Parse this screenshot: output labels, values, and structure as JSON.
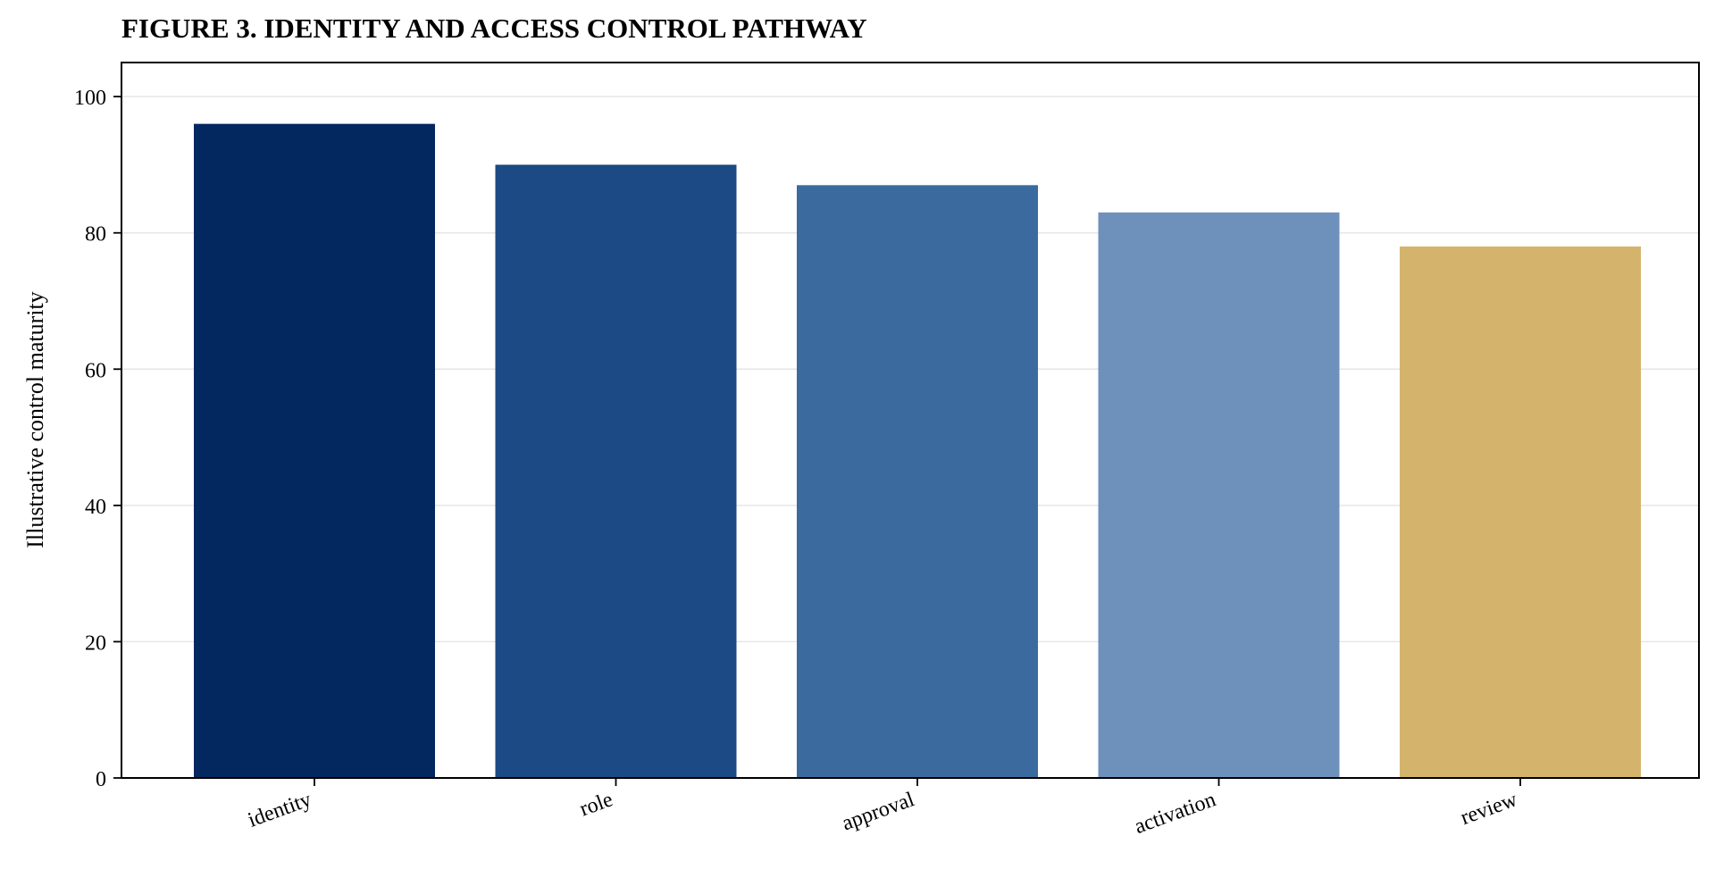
{
  "chart_data": {
    "type": "bar",
    "title": "FIGURE 3. IDENTITY AND ACCESS CONTROL PATHWAY",
    "xlabel": "",
    "ylabel": "Illustrative control maturity",
    "categories": [
      "identity",
      "role",
      "approval",
      "activation",
      "review"
    ],
    "values": [
      96,
      90,
      87,
      83,
      78
    ],
    "colors": [
      "#03285f",
      "#1b4a84",
      "#3b6b9e",
      "#6e91bb",
      "#d4b46c"
    ],
    "ylim": [
      0,
      105
    ],
    "yticks": [
      0,
      20,
      40,
      60,
      80,
      100
    ],
    "grid": "horizontal",
    "legend": "none"
  }
}
